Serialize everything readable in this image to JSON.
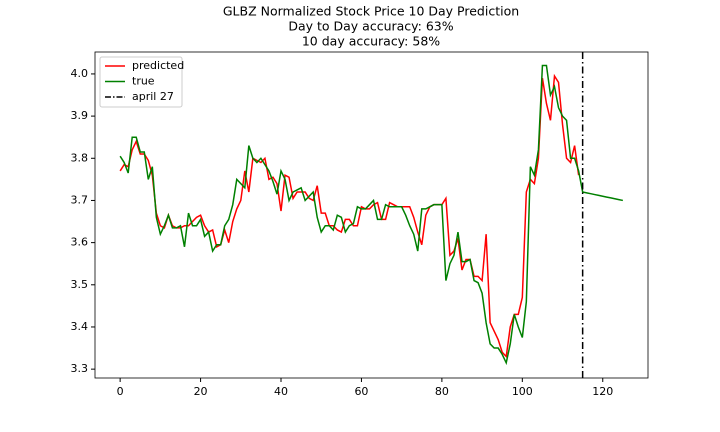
{
  "chart_data": {
    "type": "line",
    "title": "GLBZ Normalized Stock Price 10 Day Prediction",
    "subtitle": [
      "Day to Day accuracy: 63%",
      "10 day accuracy: 58%"
    ],
    "x": [
      0,
      1,
      2,
      3,
      4,
      5,
      6,
      7,
      8,
      9,
      10,
      11,
      12,
      13,
      14,
      15,
      16,
      17,
      18,
      19,
      20,
      21,
      22,
      23,
      24,
      25,
      26,
      27,
      28,
      29,
      30,
      31,
      32,
      33,
      34,
      35,
      36,
      37,
      38,
      39,
      40,
      41,
      42,
      43,
      44,
      45,
      46,
      47,
      48,
      49,
      50,
      51,
      52,
      53,
      54,
      55,
      56,
      57,
      58,
      59,
      60,
      61,
      62,
      63,
      64,
      65,
      66,
      67,
      68,
      69,
      70,
      71,
      72,
      73,
      74,
      75,
      76,
      77,
      78,
      79,
      80,
      81,
      82,
      83,
      84,
      85,
      86,
      87,
      88,
      89,
      90,
      91,
      92,
      93,
      94,
      95,
      96,
      97,
      98,
      99,
      100,
      101,
      102,
      103,
      104,
      105,
      106,
      107,
      108,
      109,
      110,
      111,
      112,
      113,
      114,
      115,
      116,
      117,
      118,
      119,
      120,
      121,
      122,
      123,
      124,
      125
    ],
    "series": [
      {
        "name": "predicted",
        "color": "#ff0000",
        "values": [
          3.77,
          3.785,
          3.78,
          3.82,
          3.84,
          3.81,
          3.81,
          3.795,
          3.76,
          3.67,
          3.64,
          3.635,
          3.665,
          3.64,
          3.635,
          3.635,
          3.64,
          3.64,
          3.65,
          3.66,
          3.665,
          3.64,
          3.625,
          3.63,
          3.59,
          3.595,
          3.63,
          3.6,
          3.65,
          3.68,
          3.7,
          3.77,
          3.72,
          3.8,
          3.795,
          3.79,
          3.8,
          3.75,
          3.755,
          3.74,
          3.675,
          3.76,
          3.755,
          3.705,
          3.72,
          3.72,
          3.72,
          3.705,
          3.7,
          3.735,
          3.67,
          3.67,
          3.64,
          3.64,
          3.63,
          3.625,
          3.655,
          3.655,
          3.64,
          3.64,
          3.685,
          3.68,
          3.68,
          3.69,
          3.695,
          3.655,
          3.655,
          3.695,
          3.69,
          3.685,
          3.685,
          3.685,
          3.685,
          3.66,
          3.625,
          3.595,
          3.665,
          3.685,
          3.69,
          3.69,
          3.69,
          3.705,
          3.57,
          3.58,
          3.61,
          3.535,
          3.56,
          3.56,
          3.52,
          3.52,
          3.51,
          3.62,
          3.41,
          3.39,
          3.37,
          3.34,
          3.33,
          3.4,
          3.43,
          3.43,
          3.47,
          3.72,
          3.75,
          3.74,
          3.8,
          3.99,
          3.93,
          3.89,
          3.995,
          3.98,
          3.88,
          3.8,
          3.79,
          3.83,
          3.76,
          null,
          null,
          null,
          null,
          null,
          null,
          null,
          null,
          null,
          null,
          null
        ]
      },
      {
        "name": "true",
        "color": "#008000",
        "values": [
          3.805,
          3.79,
          3.765,
          3.85,
          3.85,
          3.815,
          3.815,
          3.75,
          3.78,
          3.66,
          3.62,
          3.64,
          3.665,
          3.635,
          3.635,
          3.64,
          3.59,
          3.67,
          3.64,
          3.64,
          3.655,
          3.615,
          3.625,
          3.58,
          3.595,
          3.595,
          3.64,
          3.655,
          3.69,
          3.75,
          3.74,
          3.73,
          3.83,
          3.8,
          3.79,
          3.8,
          3.785,
          3.77,
          3.745,
          3.715,
          3.77,
          3.75,
          3.7,
          3.72,
          3.725,
          3.73,
          3.7,
          3.71,
          3.72,
          3.66,
          3.625,
          3.64,
          3.64,
          3.63,
          3.665,
          3.66,
          3.625,
          3.64,
          3.645,
          3.685,
          3.68,
          3.68,
          3.69,
          3.7,
          3.655,
          3.655,
          3.69,
          3.685,
          3.685,
          3.685,
          3.685,
          3.665,
          3.64,
          3.62,
          3.58,
          3.68,
          3.68,
          3.685,
          3.69,
          3.69,
          3.69,
          3.51,
          3.55,
          3.57,
          3.625,
          3.555,
          3.555,
          3.56,
          3.51,
          3.505,
          3.48,
          3.41,
          3.36,
          3.35,
          3.35,
          3.335,
          3.315,
          3.36,
          3.43,
          3.4,
          3.375,
          3.46,
          3.78,
          3.76,
          3.82,
          4.02,
          4.02,
          3.95,
          3.97,
          3.92,
          3.9,
          3.89,
          3.8,
          3.8,
          3.77,
          3.72,
          3.718,
          3.716,
          3.714,
          3.712,
          3.71,
          3.708,
          3.706,
          3.704,
          3.702,
          3.7
        ]
      }
    ],
    "vline": {
      "x": 115,
      "name": "april 27",
      "color": "#000000"
    },
    "xlim": [
      -6.25,
      131.25
    ],
    "ylim": [
      3.279,
      4.052
    ],
    "xticks": [
      0,
      20,
      40,
      60,
      80,
      100,
      120
    ],
    "yticks": [
      3.3,
      3.4,
      3.5,
      3.6,
      3.7,
      3.8,
      3.9,
      {
        "value": 4,
        "label": "4.0"
      }
    ],
    "legend": "upper-left",
    "grid": false
  }
}
